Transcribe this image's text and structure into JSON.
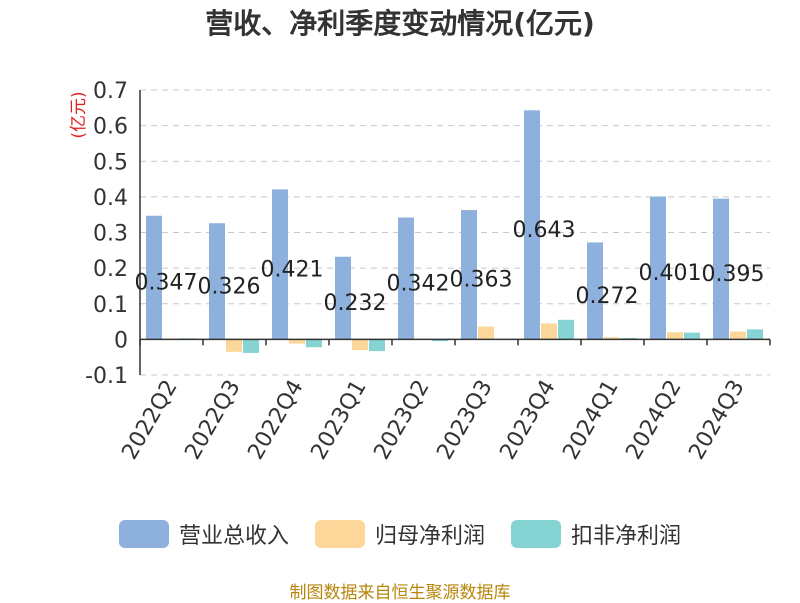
{
  "title": "营收、净利季度变动情况(亿元)",
  "source": "制图数据来自恒生聚源数据库",
  "chart_data": {
    "type": "bar",
    "title": "营收、净利季度变动情况(亿元)",
    "ylabel": "(亿元)",
    "ylim": [
      -0.1,
      0.7
    ],
    "yticks": [
      -0.1,
      0,
      0.1,
      0.2,
      0.3,
      0.4,
      0.5,
      0.6,
      0.7
    ],
    "ytick_labels": [
      "-0.1",
      "0",
      "0.1",
      "0.2",
      "0.3",
      "0.4",
      "0.5",
      "0.6",
      "0.7"
    ],
    "grid": "horizontal dashed",
    "legend_position": "bottom",
    "categories": [
      "2022Q2",
      "2022Q3",
      "2022Q4",
      "2023Q1",
      "2023Q2",
      "2023Q3",
      "2023Q4",
      "2024Q1",
      "2024Q2",
      "2024Q3"
    ],
    "series": [
      {
        "name": "营业总收入",
        "color": "#8eb0dc",
        "values": [
          0.347,
          0.326,
          0.421,
          0.232,
          0.342,
          0.363,
          0.643,
          0.272,
          0.401,
          0.395
        ],
        "labels": [
          "0.347",
          "0.326",
          "0.421",
          "0.232",
          "0.342",
          "0.363",
          "0.643",
          "0.272",
          "0.401",
          "0.395"
        ]
      },
      {
        "name": "归母净利润",
        "color": "#fdd79a",
        "values": [
          0.002,
          -0.035,
          -0.012,
          -0.03,
          0.002,
          0.036,
          0.045,
          0.006,
          0.02,
          0.022
        ]
      },
      {
        "name": "扣非净利润",
        "color": "#86d3d3",
        "values": [
          0.003,
          -0.038,
          -0.022,
          -0.033,
          -0.005,
          0.001,
          0.055,
          0.004,
          0.019,
          0.028
        ]
      }
    ]
  }
}
